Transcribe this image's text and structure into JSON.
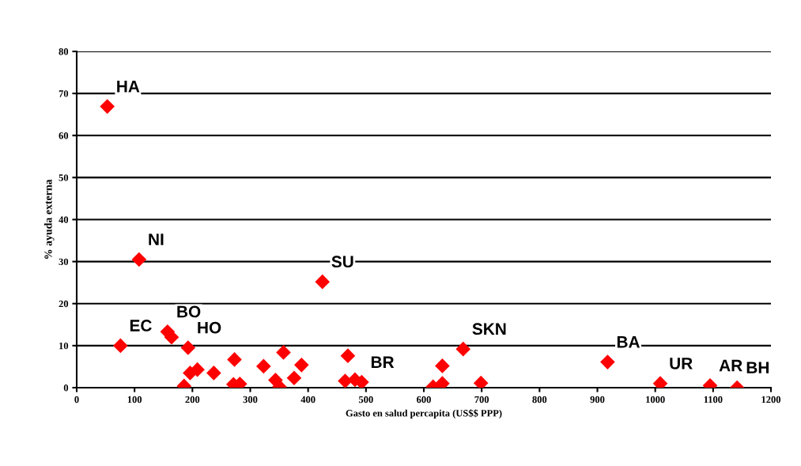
{
  "chart_data": {
    "type": "scatter",
    "xlabel": "Gasto en salud percapita (US$$ PPP)",
    "ylabel": "% ayuda externa",
    "x": [
      52.9,
      107.8,
      424.7,
      75.7,
      157,
      164,
      192.5,
      185.6,
      196,
      208.6,
      237,
      272.7,
      271,
      282,
      323,
      343.6,
      350.5,
      357.4,
      375.8,
      388.6,
      468.7,
      464,
      481,
      492.6,
      616,
      632,
      632,
      668,
      698.7,
      917.6,
      1008.7,
      1094.8,
      1141.5
    ],
    "series": [
      {
        "color": "#ff0000",
        "values": [
          66.9,
          30.5,
          25.2,
          10,
          13.3,
          12.0,
          9.5,
          0.4,
          3.5,
          4.3,
          3.5,
          6.7,
          0.8,
          0.9,
          5.1,
          1.8,
          0.2,
          8.4,
          2.3,
          5.4,
          7.6,
          1.6,
          1.9,
          1.3,
          0.2,
          1.0,
          5.2,
          9.2,
          1.1,
          6.1,
          1.0,
          0.5,
          0.0
        ]
      }
    ],
    "marker": "diamond",
    "grid": "y",
    "xlim": [
      0,
      1200
    ],
    "xticks": [
      0,
      100,
      200,
      300,
      400,
      500,
      600,
      700,
      800,
      900,
      1000,
      1100,
      1200
    ],
    "ylim": [
      0,
      80
    ],
    "yticks": [
      0,
      10,
      20,
      30,
      40,
      50,
      60,
      70,
      80
    ],
    "annotations": [
      {
        "text": "HA",
        "x": 52.9,
        "y": 66.9
      },
      {
        "text": "NI",
        "x": 107.8,
        "y": 30.5
      },
      {
        "text": "SU",
        "x": 424.7,
        "y": 25.2
      },
      {
        "text": "BO",
        "x": 157,
        "y": 13.3
      },
      {
        "text": "HO",
        "x": 192.5,
        "y": 9.5
      },
      {
        "text": "EC",
        "x": 75.7,
        "y": 10
      },
      {
        "text": "SKN",
        "x": 668,
        "y": 9.2
      },
      {
        "text": "BR",
        "x": 492.6,
        "y": 1.3
      },
      {
        "text": "BA",
        "x": 917.6,
        "y": 6.1
      },
      {
        "text": "UR",
        "x": 1008.7,
        "y": 1.0
      },
      {
        "text": "AR",
        "x": 1094.8,
        "y": 0.5
      },
      {
        "text": "BH",
        "x": 1141.5,
        "y": 0.0
      }
    ]
  }
}
